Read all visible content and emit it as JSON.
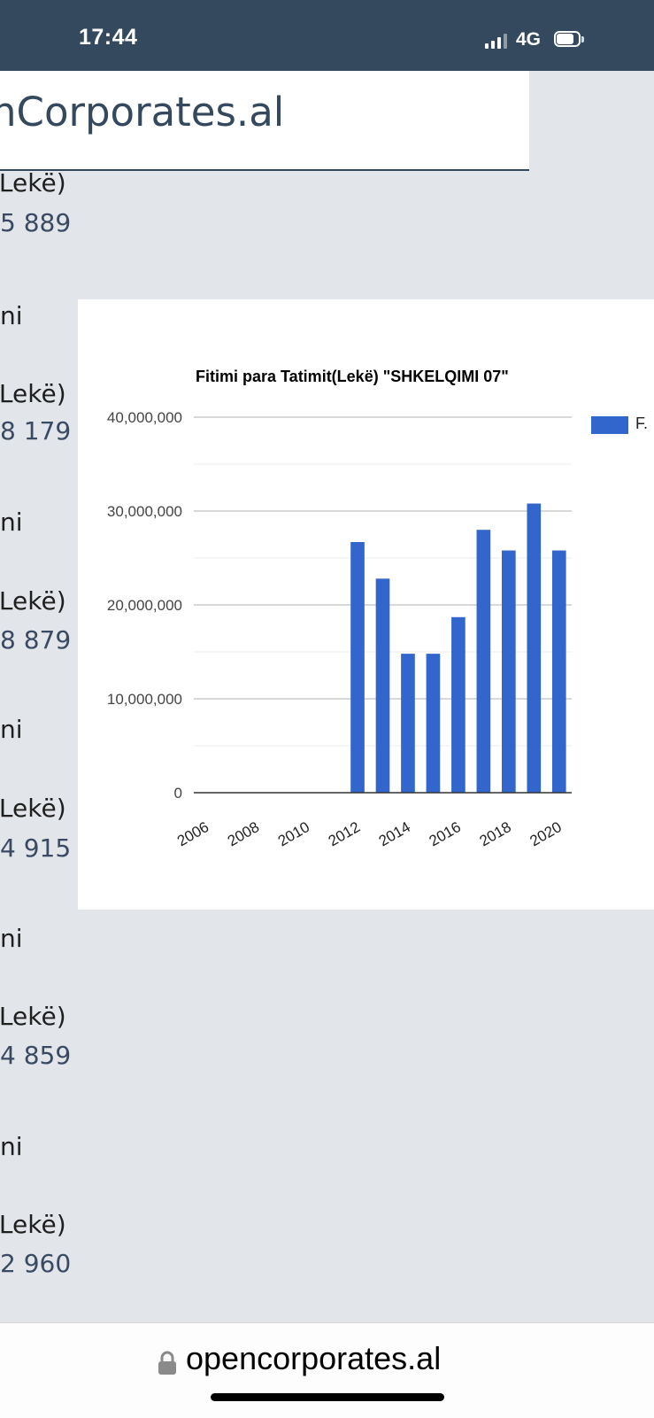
{
  "status_bar": {
    "time": "17:44",
    "network": "4G"
  },
  "header": {
    "title": "nCorporates.al"
  },
  "left_column": [
    {
      "label": "(Lekë)",
      "value": "5 889"
    },
    {
      "label": "ni"
    },
    {
      "label": "(Lekë)",
      "value": "8 179"
    },
    {
      "label": "ni"
    },
    {
      "label": "(Lekë)",
      "value": "8 879"
    },
    {
      "label": "ni"
    },
    {
      "label": "(Lekë)",
      "value": "4 915"
    },
    {
      "label": "ni"
    },
    {
      "label": "(Lekë)",
      "value": "4 859"
    },
    {
      "label": "ni"
    },
    {
      "label": "(Lekë)",
      "value": "2 960"
    }
  ],
  "chart_data": {
    "type": "bar",
    "title": "Fitimi para Tatimit(Lekë) \"SHKELQIMI 07\"",
    "x_tick_labels": [
      "2006",
      "2008",
      "2010",
      "2012",
      "2014",
      "2016",
      "2018",
      "2020"
    ],
    "y_tick_labels": [
      "0",
      "10,000,000",
      "20,000,000",
      "30,000,000",
      "40,000,000"
    ],
    "ylim": [
      0,
      40000000
    ],
    "grid": true,
    "legend_position": "right",
    "series": [
      {
        "name": "F.",
        "color": "#3366cc",
        "categories": [
          "2012",
          "2013",
          "2014",
          "2015",
          "2016",
          "2017",
          "2018",
          "2019",
          "2020"
        ],
        "values": [
          26700000,
          22800000,
          14800000,
          14800000,
          18700000,
          28000000,
          25800000,
          30800000,
          25800000
        ]
      }
    ]
  },
  "bottom_bar": {
    "url": "opencorporates.al"
  }
}
